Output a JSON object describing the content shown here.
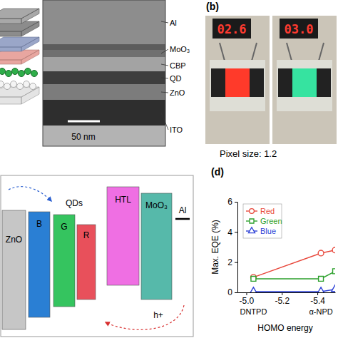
{
  "panel_a": {
    "layers": [
      "Al",
      "MoO₃",
      "CBP",
      "QD",
      "ZnO",
      "ITO"
    ],
    "scale_bar": "50 nm"
  },
  "panel_b": {
    "label": "(b)",
    "displays": [
      "02.6",
      "03.0"
    ],
    "caption": "Pixel size: 1.2"
  },
  "panel_c": {
    "layers": [
      "ZnO",
      "B",
      "G",
      "R",
      "HTL",
      "MoO₃",
      "Al"
    ],
    "group_label": "QDs",
    "carrier": "h+"
  },
  "chart_data": {
    "type": "line",
    "label": "(d)",
    "x_label": "HOMO energy",
    "y_label": "Max. EQE (%)",
    "x": [
      -5.04,
      -5.42,
      -5.5
    ],
    "series": [
      {
        "name": "Red",
        "color": "#e8483c",
        "marker": "circle",
        "values": [
          1.0,
          2.6,
          2.8
        ]
      },
      {
        "name": "Green",
        "color": "#2ca02c",
        "marker": "square",
        "values": [
          0.9,
          0.9,
          1.4
        ]
      },
      {
        "name": "Blue",
        "color": "#2b3fd6",
        "marker": "triangle",
        "values": [
          0.05,
          0.05,
          0.2
        ]
      }
    ],
    "xlim": [
      -4.95,
      -5.5
    ],
    "ylim": [
      0,
      6
    ],
    "xticks": [
      {
        "value": -5,
        "label": "-5.0"
      },
      {
        "value": -5.2,
        "label": "-5.2"
      },
      {
        "value": -5.4,
        "label": "-5.4"
      }
    ],
    "yticks": [
      0,
      2,
      4,
      6
    ],
    "annotations": [
      {
        "text": "DNTPD",
        "x": -5.04
      },
      {
        "text": "α-NPD",
        "x": -5.42
      }
    ],
    "legend": "upper left"
  }
}
